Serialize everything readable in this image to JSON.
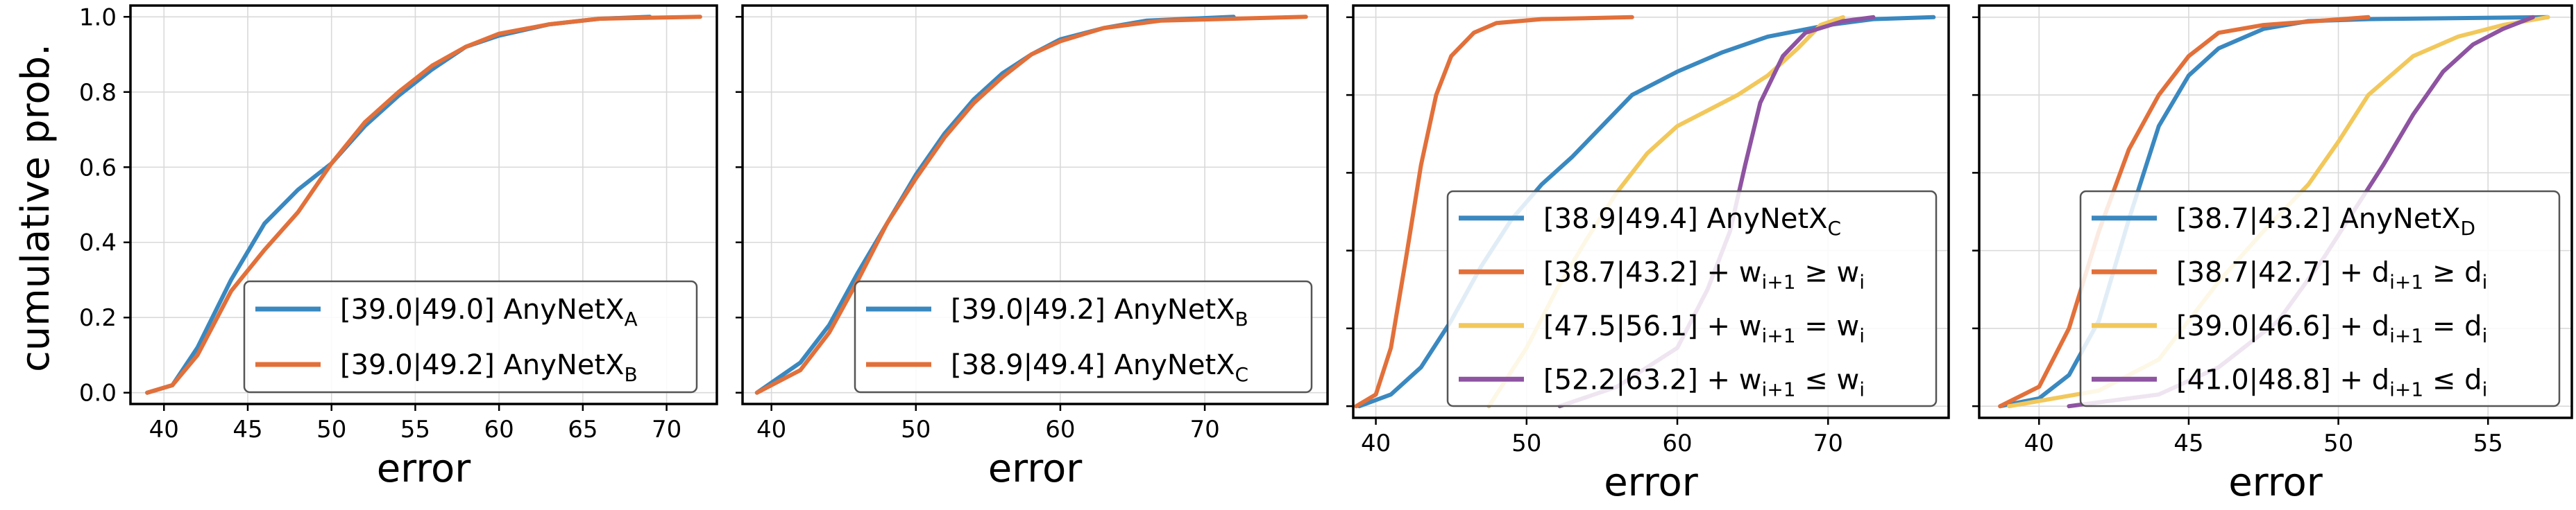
{
  "figure": {
    "ylabel": "cumulative prob."
  },
  "colors": {
    "blue": "#3A88C0",
    "orange": "#E2703A",
    "yellow": "#F2C85B",
    "purple": "#8E53A1"
  },
  "chart_data": [
    {
      "type": "line",
      "xlabel": "error",
      "ylabel": "cumulative prob.",
      "xlim": [
        38.0,
        73.0
      ],
      "ylim": [
        -0.03,
        1.03
      ],
      "xticks": [
        40,
        45,
        50,
        55,
        60,
        65,
        70
      ],
      "yticks": [
        0.0,
        0.2,
        0.4,
        0.6,
        0.8,
        1.0
      ],
      "grid": true,
      "legend_position": "lower-right",
      "series": [
        {
          "label_pre": "[39.0|49.0] AnyNetX",
          "label_sub": "A",
          "color": "blue",
          "points": [
            [
              39.0,
              0.0
            ],
            [
              40.5,
              0.02
            ],
            [
              42.0,
              0.12
            ],
            [
              44.0,
              0.3
            ],
            [
              46.0,
              0.45
            ],
            [
              48.0,
              0.54
            ],
            [
              50.0,
              0.61
            ],
            [
              52.0,
              0.71
            ],
            [
              54.0,
              0.79
            ],
            [
              56.0,
              0.86
            ],
            [
              58.0,
              0.92
            ],
            [
              60.0,
              0.95
            ],
            [
              63.0,
              0.98
            ],
            [
              66.0,
              0.995
            ],
            [
              69.0,
              1.0
            ]
          ]
        },
        {
          "label_pre": "[39.0|49.2] AnyNetX",
          "label_sub": "B",
          "color": "orange",
          "points": [
            [
              39.0,
              0.0
            ],
            [
              40.5,
              0.02
            ],
            [
              42.0,
              0.1
            ],
            [
              44.0,
              0.27
            ],
            [
              46.0,
              0.38
            ],
            [
              48.0,
              0.48
            ],
            [
              50.0,
              0.61
            ],
            [
              52.0,
              0.72
            ],
            [
              54.0,
              0.8
            ],
            [
              56.0,
              0.87
            ],
            [
              58.0,
              0.92
            ],
            [
              60.0,
              0.955
            ],
            [
              63.0,
              0.98
            ],
            [
              66.0,
              0.995
            ],
            [
              72.0,
              1.0
            ]
          ]
        }
      ]
    },
    {
      "type": "line",
      "xlabel": "error",
      "ylabel": "",
      "xlim": [
        38.0,
        78.5
      ],
      "ylim": [
        -0.03,
        1.03
      ],
      "xticks": [
        40,
        50,
        60,
        70
      ],
      "yticks": [
        0.0,
        0.2,
        0.4,
        0.6,
        0.8,
        1.0
      ],
      "grid": true,
      "legend_position": "lower-right",
      "series": [
        {
          "label_pre": "[39.0|49.2] AnyNetX",
          "label_sub": "B",
          "color": "blue",
          "points": [
            [
              39.0,
              0.0
            ],
            [
              42.0,
              0.08
            ],
            [
              44.0,
              0.18
            ],
            [
              46.0,
              0.32
            ],
            [
              48.0,
              0.45
            ],
            [
              50.0,
              0.58
            ],
            [
              52.0,
              0.69
            ],
            [
              54.0,
              0.78
            ],
            [
              56.0,
              0.85
            ],
            [
              58.0,
              0.9
            ],
            [
              60.0,
              0.94
            ],
            [
              63.0,
              0.97
            ],
            [
              66.0,
              0.99
            ],
            [
              72.0,
              1.0
            ]
          ]
        },
        {
          "label_pre": "[38.9|49.4] AnyNetX",
          "label_sub": "C",
          "color": "orange",
          "points": [
            [
              39.0,
              0.0
            ],
            [
              42.0,
              0.06
            ],
            [
              44.0,
              0.16
            ],
            [
              46.0,
              0.3
            ],
            [
              48.0,
              0.45
            ],
            [
              50.0,
              0.57
            ],
            [
              52.0,
              0.68
            ],
            [
              54.0,
              0.77
            ],
            [
              56.0,
              0.84
            ],
            [
              58.0,
              0.9
            ],
            [
              60.0,
              0.935
            ],
            [
              63.0,
              0.97
            ],
            [
              67.0,
              0.99
            ],
            [
              72.0,
              0.995
            ],
            [
              77.0,
              1.0
            ]
          ]
        }
      ]
    },
    {
      "type": "line",
      "xlabel": "error",
      "ylabel": "",
      "xlim": [
        38.5,
        78.0
      ],
      "ylim": [
        -0.03,
        1.03
      ],
      "xticks": [
        40,
        50,
        60,
        70
      ],
      "yticks": [
        0.0,
        0.2,
        0.4,
        0.6,
        0.8,
        1.0
      ],
      "grid": true,
      "legend_position": "lower-right",
      "series": [
        {
          "label_pre": "[38.9|49.4] AnyNetX",
          "label_sub": "C",
          "color": "blue",
          "points": [
            [
              38.9,
              0.0
            ],
            [
              41.0,
              0.03
            ],
            [
              43.0,
              0.1
            ],
            [
              45.0,
              0.22
            ],
            [
              47.0,
              0.36
            ],
            [
              49.0,
              0.48
            ],
            [
              51.0,
              0.57
            ],
            [
              53.0,
              0.64
            ],
            [
              55.0,
              0.72
            ],
            [
              57.0,
              0.8
            ],
            [
              60.0,
              0.86
            ],
            [
              63.0,
              0.91
            ],
            [
              66.0,
              0.95
            ],
            [
              70.0,
              0.98
            ],
            [
              73.0,
              0.995
            ],
            [
              77.0,
              1.0
            ]
          ]
        },
        {
          "label_pre": "[38.7|43.2] + w",
          "label_sub": "i+1",
          "label_post": " ≥ w",
          "label_sub2": "i",
          "color": "orange",
          "points": [
            [
              38.7,
              0.0
            ],
            [
              40.0,
              0.03
            ],
            [
              41.0,
              0.15
            ],
            [
              42.0,
              0.38
            ],
            [
              43.0,
              0.62
            ],
            [
              44.0,
              0.8
            ],
            [
              45.0,
              0.9
            ],
            [
              46.5,
              0.96
            ],
            [
              48.0,
              0.985
            ],
            [
              51.0,
              0.995
            ],
            [
              57.0,
              1.0
            ]
          ]
        },
        {
          "label_pre": "[47.5|56.1] + w",
          "label_sub": "i+1",
          "label_post": " = w",
          "label_sub2": "i",
          "color": "yellow",
          "points": [
            [
              47.5,
              0.0
            ],
            [
              50.0,
              0.15
            ],
            [
              52.0,
              0.3
            ],
            [
              54.0,
              0.43
            ],
            [
              56.0,
              0.55
            ],
            [
              58.0,
              0.65
            ],
            [
              60.0,
              0.72
            ],
            [
              62.0,
              0.76
            ],
            [
              64.0,
              0.8
            ],
            [
              66.0,
              0.85
            ],
            [
              68.0,
              0.92
            ],
            [
              69.5,
              0.98
            ],
            [
              71.0,
              1.0
            ]
          ]
        },
        {
          "label_pre": "[52.2|63.2] + w",
          "label_sub": "i+1",
          "label_post": " ≤ w",
          "label_sub2": "i",
          "color": "purple",
          "points": [
            [
              52.2,
              0.0
            ],
            [
              56.0,
              0.05
            ],
            [
              60.0,
              0.15
            ],
            [
              62.0,
              0.3
            ],
            [
              63.5,
              0.45
            ],
            [
              64.5,
              0.62
            ],
            [
              65.5,
              0.78
            ],
            [
              67.0,
              0.9
            ],
            [
              68.5,
              0.96
            ],
            [
              71.0,
              0.99
            ],
            [
              73.0,
              1.0
            ]
          ]
        }
      ]
    },
    {
      "type": "line",
      "xlabel": "error",
      "ylabel": "",
      "xlim": [
        38.0,
        57.8
      ],
      "ylim": [
        -0.03,
        1.03
      ],
      "xticks": [
        40,
        45,
        50,
        55
      ],
      "yticks": [
        0.0,
        0.2,
        0.4,
        0.6,
        0.8,
        1.0
      ],
      "grid": true,
      "legend_position": "lower-right",
      "series": [
        {
          "label_pre": "[38.7|43.2] AnyNetX",
          "label_sub": "D",
          "color": "blue",
          "points": [
            [
              38.7,
              0.0
            ],
            [
              40.0,
              0.02
            ],
            [
              41.0,
              0.08
            ],
            [
              42.0,
              0.22
            ],
            [
              43.0,
              0.48
            ],
            [
              44.0,
              0.72
            ],
            [
              45.0,
              0.85
            ],
            [
              46.0,
              0.92
            ],
            [
              47.5,
              0.97
            ],
            [
              49.0,
              0.99
            ],
            [
              51.0,
              0.995
            ],
            [
              57.0,
              1.0
            ]
          ]
        },
        {
          "label_pre": "[38.7|42.7] + d",
          "label_sub": "i+1",
          "label_post": " ≥ d",
          "label_sub2": "i",
          "color": "orange",
          "points": [
            [
              38.7,
              0.0
            ],
            [
              40.0,
              0.05
            ],
            [
              41.0,
              0.2
            ],
            [
              42.0,
              0.45
            ],
            [
              43.0,
              0.66
            ],
            [
              44.0,
              0.8
            ],
            [
              45.0,
              0.9
            ],
            [
              46.0,
              0.96
            ],
            [
              47.5,
              0.98
            ],
            [
              51.0,
              1.0
            ]
          ]
        },
        {
          "label_pre": "[39.0|46.6] + d",
          "label_sub": "i+1",
          "label_post": " = d",
          "label_sub2": "i",
          "color": "yellow",
          "points": [
            [
              39.0,
              0.0
            ],
            [
              42.0,
              0.04
            ],
            [
              44.0,
              0.12
            ],
            [
              46.0,
              0.32
            ],
            [
              47.5,
              0.45
            ],
            [
              49.0,
              0.57
            ],
            [
              50.0,
              0.68
            ],
            [
              51.0,
              0.8
            ],
            [
              52.5,
              0.9
            ],
            [
              54.0,
              0.95
            ],
            [
              55.5,
              0.98
            ],
            [
              57.0,
              1.0
            ]
          ]
        },
        {
          "label_pre": "[41.0|48.8] + d",
          "label_sub": "i+1",
          "label_post": " ≤ d",
          "label_sub2": "i",
          "color": "purple",
          "points": [
            [
              41.0,
              0.0
            ],
            [
              44.0,
              0.03
            ],
            [
              46.0,
              0.1
            ],
            [
              48.0,
              0.22
            ],
            [
              49.5,
              0.38
            ],
            [
              50.5,
              0.5
            ],
            [
              51.5,
              0.62
            ],
            [
              52.5,
              0.75
            ],
            [
              53.5,
              0.86
            ],
            [
              54.5,
              0.93
            ],
            [
              55.5,
              0.97
            ],
            [
              56.5,
              1.0
            ]
          ]
        }
      ]
    }
  ]
}
